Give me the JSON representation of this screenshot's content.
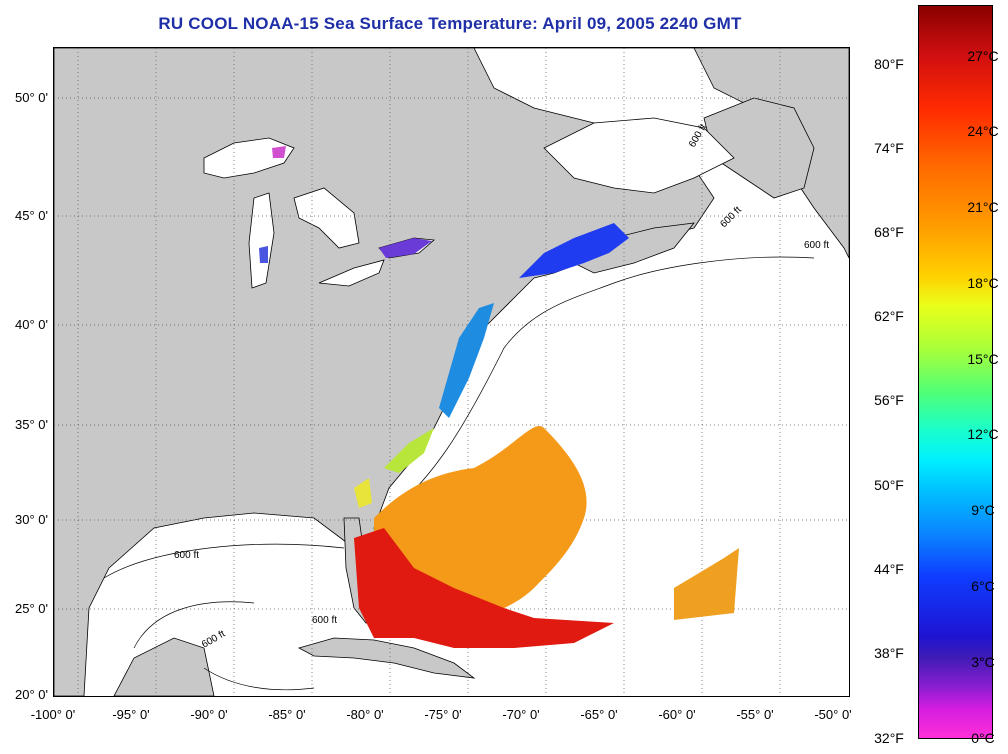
{
  "title": "RU COOL  NOAA-15  Sea Surface Temperature:  April 09, 2005 2240 GMT",
  "map": {
    "lat_labels": [
      "50° 0'",
      "45° 0'",
      "40° 0'",
      "35° 0'",
      "30° 0'",
      "25° 0'",
      "20° 0'"
    ],
    "lon_labels": [
      "-100° 0'",
      "-95° 0'",
      "-90° 0'",
      "-85° 0'",
      "-80° 0'",
      "-75° 0'",
      "-70° 0'",
      "-65° 0'",
      "-60° 0'",
      "-55° 0'",
      "-50° 0'"
    ],
    "contour_labels": [
      "600 ft",
      "600 ft",
      "600 ft",
      "600 ft",
      "600 ft",
      "600 ft"
    ],
    "land_color": "#c8c8c8",
    "ocean_color": "#ffffff"
  },
  "colorbar": {
    "fahrenheit": [
      "80°F",
      "74°F",
      "68°F",
      "62°F",
      "56°F",
      "50°F",
      "44°F",
      "38°F",
      "32°F"
    ],
    "celsius": [
      "27°C",
      "24°C",
      "21°C",
      "18°C",
      "15°C",
      "12°C",
      "9°C",
      "6°C",
      "3°C",
      "0°C"
    ]
  }
}
